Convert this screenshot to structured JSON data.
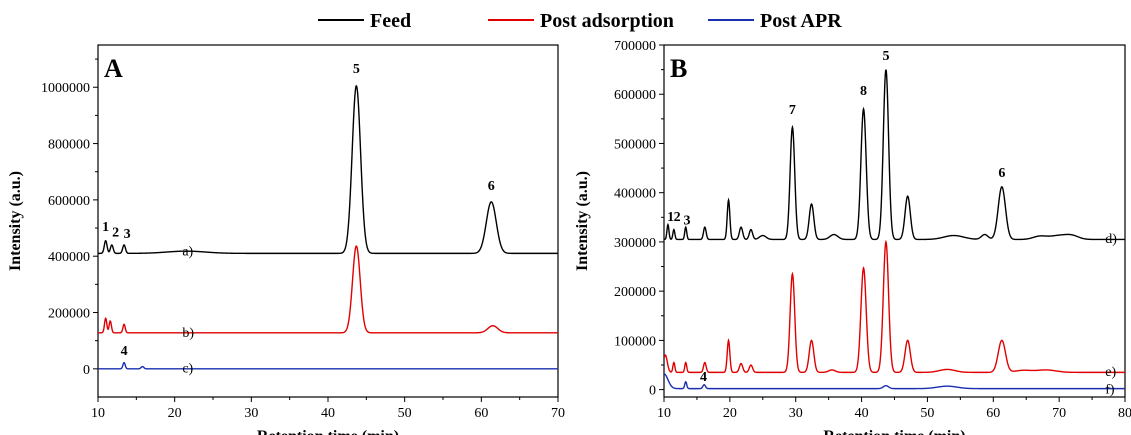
{
  "legend": [
    {
      "label": "Feed",
      "color": "#000000"
    },
    {
      "label": "Post adsorption",
      "color": "#e00000"
    },
    {
      "label": "Post APR",
      "color": "#1a2fb0"
    }
  ],
  "chart_data": [
    {
      "type": "line",
      "panel_label": "A",
      "xlabel": "Retention time (min)",
      "ylabel": "Intensity (a.u.)",
      "xlim": [
        10,
        70
      ],
      "ylim": [
        -100000,
        1150000
      ],
      "xticks": [
        10,
        20,
        30,
        40,
        50,
        60,
        70
      ],
      "yticks": [
        0,
        200000,
        400000,
        600000,
        800000,
        1000000
      ],
      "series": [
        {
          "name": "Feed",
          "curve_label": "a)",
          "label_at": [
            21,
            420000
          ],
          "color": "#000000",
          "baseline": 410000,
          "peaks": [
            [
              11.0,
              45000,
              0.18
            ],
            [
              11.8,
              30000,
              0.18
            ],
            [
              13.4,
              30000,
              0.18
            ],
            [
              21.5,
              8000,
              2.5
            ],
            [
              43.7,
              595000,
              0.55
            ],
            [
              61.3,
              183000,
              0.65
            ]
          ]
        },
        {
          "name": "Post adsorption",
          "curve_label": "b)",
          "label_at": [
            21,
            130000
          ],
          "color": "#e00000",
          "baseline": 128000,
          "peaks": [
            [
              11.0,
              52000,
              0.15
            ],
            [
              11.6,
              42000,
              0.15
            ],
            [
              13.4,
              30000,
              0.15
            ],
            [
              43.7,
              308000,
              0.5
            ],
            [
              61.5,
              25000,
              0.65
            ]
          ]
        },
        {
          "name": "Post APR",
          "curve_label": "c)",
          "label_at": [
            21,
            5000
          ],
          "color": "#1a2fb0",
          "baseline": 0,
          "peaks": [
            [
              13.4,
              22000,
              0.15
            ],
            [
              15.8,
              8000,
              0.18
            ]
          ]
        }
      ],
      "peak_labels": [
        {
          "text": "1",
          "x": 11.0,
          "y": 490000
        },
        {
          "text": "2",
          "x": 12.3,
          "y": 470000
        },
        {
          "text": "3",
          "x": 13.8,
          "y": 465000
        },
        {
          "text": "5",
          "x": 43.7,
          "y": 1050000
        },
        {
          "text": "6",
          "x": 61.3,
          "y": 635000
        },
        {
          "text": "4",
          "x": 13.4,
          "y": 50000
        }
      ]
    },
    {
      "type": "line",
      "panel_label": "B",
      "xlabel": "Retention time (min)",
      "ylabel": "Intensity (a.u.)",
      "xlim": [
        10,
        80
      ],
      "ylim": [
        -15000,
        700000
      ],
      "xticks": [
        10,
        20,
        30,
        40,
        50,
        60,
        70,
        80
      ],
      "yticks": [
        0,
        100000,
        200000,
        300000,
        400000,
        500000,
        600000,
        700000
      ],
      "series": [
        {
          "name": "Feed",
          "curve_label": "d)",
          "label_at": [
            77,
            308000
          ],
          "color": "#000000",
          "baseline": 305000,
          "peaks": [
            [
              10.6,
              30000,
              0.15
            ],
            [
              11.5,
              20000,
              0.15
            ],
            [
              13.3,
              25000,
              0.15
            ],
            [
              16.2,
              25000,
              0.2
            ],
            [
              19.8,
              80000,
              0.2
            ],
            [
              21.7,
              25000,
              0.25
            ],
            [
              23.2,
              20000,
              0.25
            ],
            [
              25,
              8000,
              0.5
            ],
            [
              29.5,
              228000,
              0.35
            ],
            [
              32.4,
              72000,
              0.35
            ],
            [
              35.8,
              10000,
              0.6
            ],
            [
              40.3,
              265000,
              0.4
            ],
            [
              43.7,
              345000,
              0.4
            ],
            [
              47,
              88000,
              0.4
            ],
            [
              54,
              8000,
              1.5
            ],
            [
              58.7,
              10000,
              0.5
            ],
            [
              61.3,
              107000,
              0.55
            ],
            [
              67,
              6000,
              1.0
            ],
            [
              70,
              8000,
              1.5
            ],
            [
              72,
              6000,
              1.0
            ]
          ]
        },
        {
          "name": "Post adsorption",
          "curve_label": "e)",
          "label_at": [
            77,
            38000
          ],
          "color": "#e00000",
          "baseline": 35000,
          "peaks": [
            [
              10.2,
              35000,
              0.3
            ],
            [
              11.5,
              20000,
              0.15
            ],
            [
              13.3,
              20000,
              0.15
            ],
            [
              16.2,
              20000,
              0.2
            ],
            [
              19.8,
              65000,
              0.2
            ],
            [
              21.7,
              18000,
              0.25
            ],
            [
              23.2,
              15000,
              0.25
            ],
            [
              29.5,
              200000,
              0.35
            ],
            [
              32.4,
              65000,
              0.35
            ],
            [
              35.5,
              5000,
              0.5
            ],
            [
              40.3,
              212000,
              0.4
            ],
            [
              43.7,
              265000,
              0.4
            ],
            [
              47,
              65000,
              0.4
            ],
            [
              53,
              6000,
              1.2
            ],
            [
              61.3,
              65000,
              0.55
            ],
            [
              64.5,
              4000,
              1.2
            ],
            [
              68,
              5000,
              1.5
            ]
          ]
        },
        {
          "name": "Post APR",
          "curve_label": "f)",
          "label_at": [
            77,
            2000
          ],
          "color": "#1a2fb0",
          "baseline": 2000,
          "peaks": [
            [
              10.0,
              30000,
              0.6
            ],
            [
              13.3,
              14000,
              0.15
            ],
            [
              16.1,
              8000,
              0.2
            ],
            [
              43.7,
              6000,
              0.4
            ],
            [
              53,
              5000,
              1.5
            ]
          ]
        }
      ],
      "peak_labels": [
        {
          "text": "1",
          "x": 11.0,
          "y": 342000
        },
        {
          "text": "2",
          "x": 12.0,
          "y": 342000
        },
        {
          "text": "3",
          "x": 13.5,
          "y": 335000
        },
        {
          "text": "7",
          "x": 29.5,
          "y": 560000
        },
        {
          "text": "8",
          "x": 40.3,
          "y": 598000
        },
        {
          "text": "5",
          "x": 43.7,
          "y": 670000
        },
        {
          "text": "6",
          "x": 61.3,
          "y": 432000
        },
        {
          "text": "4",
          "x": 16.0,
          "y": 18000
        }
      ]
    }
  ]
}
